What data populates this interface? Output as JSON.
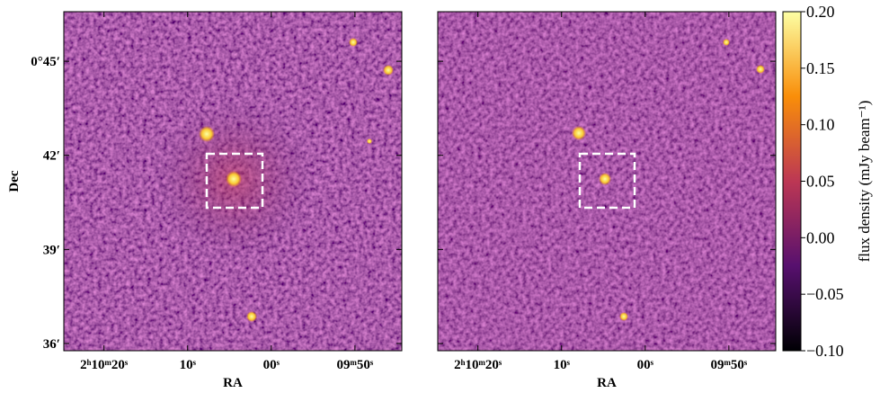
{
  "chart_data": [
    {
      "type": "image",
      "xlabel": "RA",
      "ylabel": "Dec",
      "xlim": [
        7824.8,
        7784.4
      ],
      "ylim": [
        35.77,
        46.58
      ],
      "xticks": [
        {
          "value": 7820,
          "label": "2ʰ10ᵐ20ˢ"
        },
        {
          "value": 7810,
          "label": "10ˢ"
        },
        {
          "value": 7800,
          "label": "00ˢ"
        },
        {
          "value": 7790,
          "label": "09ᵐ50ˢ"
        }
      ],
      "yticks": [
        {
          "value": 45,
          "label": "0°45′"
        },
        {
          "value": 42,
          "label": "42′"
        },
        {
          "value": 39,
          "label": "39′"
        },
        {
          "value": 36,
          "label": "36′"
        }
      ]
    },
    {
      "type": "image",
      "xlabel": "RA",
      "xlim": [
        7824.8,
        7784.4
      ],
      "ylim": [
        35.77,
        46.58
      ],
      "xticks": [
        {
          "value": 7820,
          "label": "2ʰ10ᵐ20ˢ"
        },
        {
          "value": 7810,
          "label": "10ˢ"
        },
        {
          "value": 7800,
          "label": "00ˢ"
        },
        {
          "value": 7790,
          "label": "09ᵐ50ˢ"
        }
      ],
      "yticks": [
        45,
        42,
        39,
        36
      ],
      "show_ytick_labels": false
    },
    {
      "type": "colorbar",
      "label": "flux density (mJy beam⁻¹)",
      "ylim": [
        -0.1,
        0.2
      ],
      "yticks": [
        {
          "value": 0.2,
          "label": "0.20"
        },
        {
          "value": 0.15,
          "label": "0.15"
        },
        {
          "value": 0.1,
          "label": "0.10"
        },
        {
          "value": 0.05,
          "label": "0.05"
        },
        {
          "value": 0,
          "label": "0.00"
        },
        {
          "value": -0.05,
          "label": "−0.05"
        },
        {
          "value": -0.1,
          "label": "−0.10"
        }
      ],
      "colormap": [
        "#000004",
        "#57106e",
        "#bc3754",
        "#f98e09",
        "#fcffa4"
      ]
    }
  ]
}
